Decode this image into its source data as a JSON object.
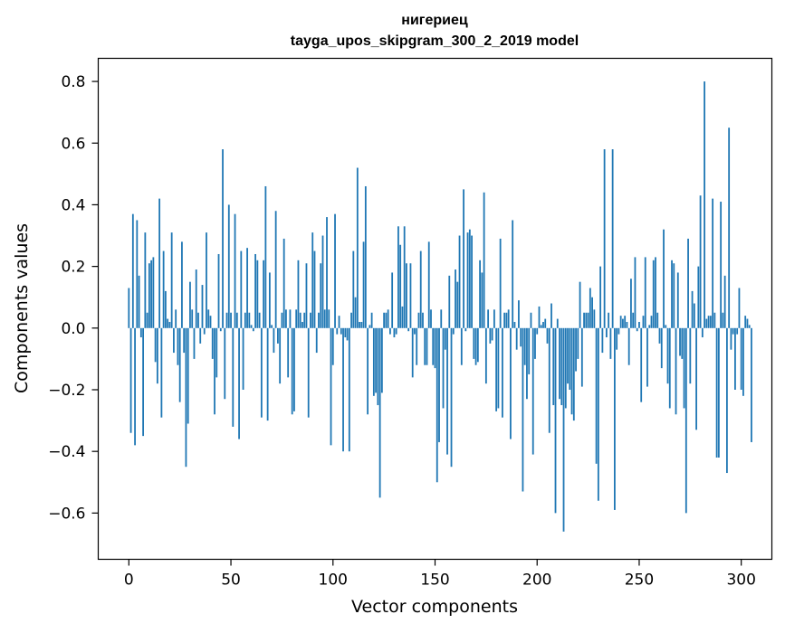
{
  "chart_data": {
    "type": "bar",
    "title_line1": "нигериец",
    "title_line2": "tayga_upos_skipgram_300_2_2019 model",
    "xlabel": "Vector components",
    "ylabel": "Components values",
    "xlim": [
      -15,
      315
    ],
    "ylim": [
      -0.75,
      0.875
    ],
    "xticks": [
      0,
      50,
      100,
      150,
      200,
      250,
      300
    ],
    "yticks": [
      -0.6,
      -0.4,
      -0.2,
      0.0,
      0.2,
      0.4,
      0.6,
      0.8
    ],
    "ytick_labels": [
      "−0.6",
      "−0.4",
      "−0.2",
      "0.0",
      "0.2",
      "0.4",
      "0.6",
      "0.8"
    ],
    "bar_color": "#1f77b4",
    "grid": false,
    "values": [
      0.13,
      -0.34,
      0.37,
      -0.38,
      0.35,
      0.17,
      -0.03,
      -0.35,
      0.31,
      0.05,
      0.21,
      0.22,
      0.23,
      -0.11,
      -0.18,
      0.42,
      -0.29,
      0.25,
      0.12,
      0.03,
      0.02,
      0.31,
      -0.08,
      0.06,
      -0.12,
      -0.24,
      0.28,
      -0.08,
      -0.45,
      -0.31,
      0.15,
      0.06,
      -0.1,
      0.19,
      0.05,
      -0.05,
      0.14,
      -0.02,
      0.31,
      0.06,
      0.04,
      -0.1,
      -0.28,
      -0.16,
      0.24,
      -0.01,
      0.58,
      -0.23,
      0.05,
      0.4,
      0.05,
      -0.32,
      0.37,
      0.05,
      -0.36,
      0.25,
      -0.2,
      0.05,
      0.26,
      0.05,
      0.01,
      -0.01,
      0.24,
      0.22,
      0.05,
      -0.29,
      0.22,
      0.46,
      -0.3,
      0.18,
      0.01,
      -0.08,
      0.38,
      -0.05,
      -0.18,
      0.05,
      0.29,
      0.06,
      -0.16,
      0.06,
      -0.28,
      -0.27,
      0.06,
      0.22,
      0.05,
      0.02,
      0.05,
      0.21,
      -0.29,
      0.05,
      0.31,
      0.25,
      -0.08,
      0.05,
      0.21,
      0.3,
      0.06,
      0.36,
      0.06,
      -0.38,
      -0.12,
      0.37,
      -0.02,
      0.04,
      -0.02,
      -0.4,
      -0.03,
      -0.04,
      -0.4,
      0.05,
      0.25,
      0.1,
      0.52,
      0.02,
      0.02,
      0.28,
      0.46,
      -0.28,
      0.01,
      0.05,
      -0.22,
      -0.21,
      -0.25,
      -0.55,
      -0.21,
      0.05,
      0.05,
      0.06,
      -0.02,
      0.18,
      -0.03,
      -0.02,
      0.33,
      0.27,
      0.07,
      0.33,
      0.21,
      -0.01,
      0.21,
      -0.16,
      -0.02,
      -0.12,
      0.05,
      0.25,
      0.05,
      -0.12,
      -0.12,
      0.28,
      0.06,
      -0.12,
      -0.13,
      -0.5,
      -0.37,
      0.06,
      -0.26,
      -0.07,
      -0.41,
      0.17,
      -0.45,
      -0.02,
      0.19,
      0.15,
      0.3,
      -0.12,
      0.45,
      -0.01,
      0.31,
      0.32,
      0.3,
      -0.1,
      -0.12,
      -0.11,
      0.22,
      0.18,
      0.44,
      -0.18,
      0.06,
      -0.05,
      -0.04,
      0.06,
      -0.27,
      -0.26,
      0.29,
      -0.29,
      0.05,
      0.05,
      0.06,
      -0.36,
      0.35,
      0.02,
      -0.07,
      0.09,
      -0.06,
      -0.53,
      -0.12,
      -0.23,
      -0.15,
      0.05,
      -0.41,
      -0.1,
      -0.02,
      0.07,
      0.01,
      0.02,
      0.03,
      -0.05,
      -0.34,
      0.08,
      -0.25,
      -0.6,
      0.03,
      -0.23,
      -0.25,
      -0.66,
      -0.26,
      -0.18,
      -0.2,
      -0.28,
      -0.3,
      -0.14,
      -0.1,
      0.15,
      -0.19,
      0.05,
      0.05,
      0.05,
      0.13,
      0.1,
      0.06,
      -0.44,
      -0.56,
      0.2,
      -0.08,
      0.58,
      -0.03,
      0.05,
      -0.1,
      0.58,
      -0.59,
      -0.07,
      -0.02,
      0.04,
      0.03,
      0.04,
      0.02,
      -0.12,
      0.16,
      0.05,
      0.23,
      -0.01,
      0.02,
      -0.24,
      0.04,
      0.23,
      -0.19,
      0.01,
      0.04,
      0.22,
      0.23,
      0.05,
      -0.05,
      -0.13,
      0.32,
      0.01,
      -0.18,
      -0.26,
      0.22,
      0.21,
      -0.28,
      0.18,
      -0.09,
      -0.1,
      -0.26,
      -0.6,
      0.29,
      -0.18,
      0.12,
      0.08,
      -0.33,
      0.2,
      0.43,
      -0.03,
      0.8,
      0.03,
      0.04,
      0.04,
      0.42,
      0.05,
      -0.42,
      -0.42,
      0.41,
      0.05,
      0.17,
      -0.47,
      0.65,
      -0.07,
      -0.02,
      -0.2,
      -0.02,
      0.13,
      -0.2,
      -0.22,
      0.04,
      0.03,
      0.01,
      -0.37
    ]
  }
}
